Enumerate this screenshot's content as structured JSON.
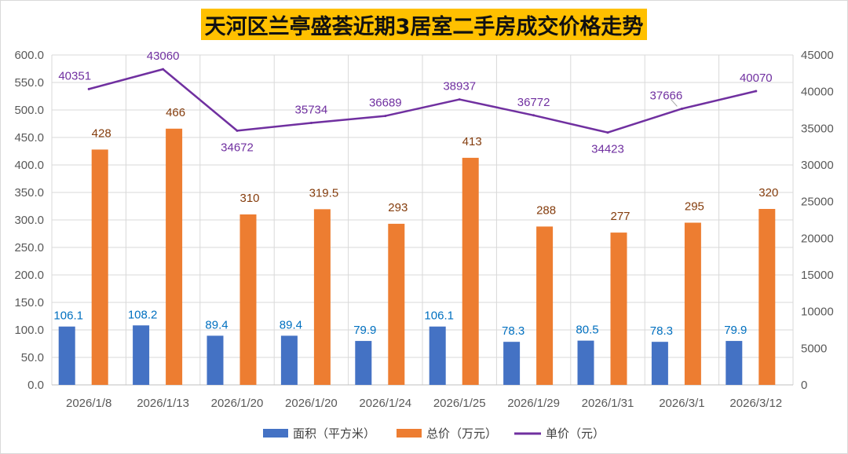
{
  "chart_data": {
    "type": "bar",
    "title": "天河区兰亭盛荟近期3居室二手房成交价格走势",
    "categories": [
      "2026/1/8",
      "2026/1/13",
      "2026/1/20",
      "2026/1/20",
      "2026/1/24",
      "2026/1/25",
      "2026/1/29",
      "2026/1/31",
      "2026/3/1",
      "2026/3/12"
    ],
    "series": [
      {
        "name": "面积（平方米）",
        "type": "bar",
        "axis": "left",
        "color": "#4472c4",
        "values": [
          106.1,
          108.2,
          89.4,
          89.4,
          79.9,
          106.1,
          78.3,
          80.5,
          78.3,
          79.9
        ],
        "labels": [
          "106.1",
          "108.2",
          "89.4",
          "89.4",
          "79.9",
          "106.1",
          "78.3",
          "80.5",
          "78.3",
          "79.9"
        ]
      },
      {
        "name": "总价（万元）",
        "type": "bar",
        "axis": "left",
        "color": "#ed7d31",
        "values": [
          428,
          466,
          310,
          319.5,
          293,
          413,
          288,
          277,
          295,
          320
        ],
        "labels": [
          "428",
          "466",
          "310",
          "319.5",
          "293",
          "413",
          "288",
          "277",
          "295",
          "320"
        ]
      },
      {
        "name": "单价（元）",
        "type": "line",
        "axis": "right",
        "color": "#7030a0",
        "values": [
          40351,
          43060,
          34672,
          35734,
          36689,
          38937,
          36772,
          34423,
          37666,
          40070
        ],
        "labels": [
          "40351",
          "43060",
          "34672",
          "35734",
          "36689",
          "38937",
          "36772",
          "34423",
          "37666",
          "40070"
        ]
      }
    ],
    "y_left": {
      "min": 0,
      "max": 600,
      "step": 50,
      "ticks": [
        "0.0",
        "50.0",
        "100.0",
        "150.0",
        "200.0",
        "250.0",
        "300.0",
        "350.0",
        "400.0",
        "450.0",
        "500.0",
        "550.0",
        "600.0"
      ]
    },
    "y_right": {
      "min": 0,
      "max": 45000,
      "step": 5000,
      "ticks": [
        "0",
        "5000",
        "10000",
        "15000",
        "20000",
        "25000",
        "30000",
        "35000",
        "40000",
        "45000"
      ]
    },
    "grid": true,
    "legend_position": "bottom"
  }
}
